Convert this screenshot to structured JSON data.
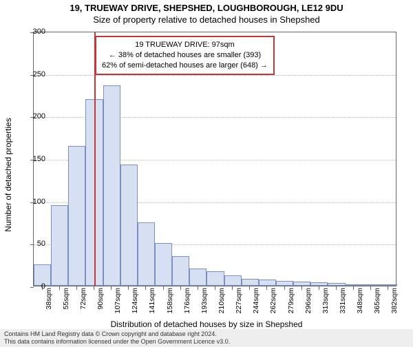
{
  "title": {
    "line1": "19, TRUEWAY DRIVE, SHEPSHED, LOUGHBOROUGH, LE12 9DU",
    "line2": "Size of property relative to detached houses in Shepshed"
  },
  "chart": {
    "type": "histogram",
    "ylabel": "Number of detached properties",
    "xlabel": "Distribution of detached houses by size in Shepshed",
    "ylim": [
      0,
      300
    ],
    "yticks": [
      0,
      50,
      100,
      150,
      200,
      250,
      300
    ],
    "xticks": [
      "38sqm",
      "55sqm",
      "72sqm",
      "90sqm",
      "107sqm",
      "124sqm",
      "141sqm",
      "158sqm",
      "176sqm",
      "193sqm",
      "210sqm",
      "227sqm",
      "244sqm",
      "262sqm",
      "279sqm",
      "296sqm",
      "313sqm",
      "331sqm",
      "348sqm",
      "365sqm",
      "382sqm"
    ],
    "bar_values": [
      25,
      95,
      165,
      220,
      236,
      143,
      75,
      50,
      35,
      20,
      17,
      12,
      8,
      7,
      6,
      5,
      4,
      3,
      0,
      2,
      2
    ],
    "bar_fill_color": "#d6e0f2",
    "bar_border_color": "#7a8fc0",
    "grid_color": "#bbbbbb",
    "background_color": "#ffffff",
    "axis_color": "#666666",
    "marker": {
      "position_index": 3.5,
      "color": "#cc3333"
    },
    "info_box": {
      "line1": "19 TRUEWAY DRIVE: 97sqm",
      "line2": "← 38% of detached houses are smaller (393)",
      "line3": "62% of semi-detached houses are larger (648) →",
      "border_color": "#cc3333"
    }
  },
  "footer": {
    "line1": "Contains HM Land Registry data © Crown copyright and database right 2024.",
    "line2": "This data contains information licensed under the Open Government Licence v3.0.",
    "background": "#eeeeee"
  }
}
